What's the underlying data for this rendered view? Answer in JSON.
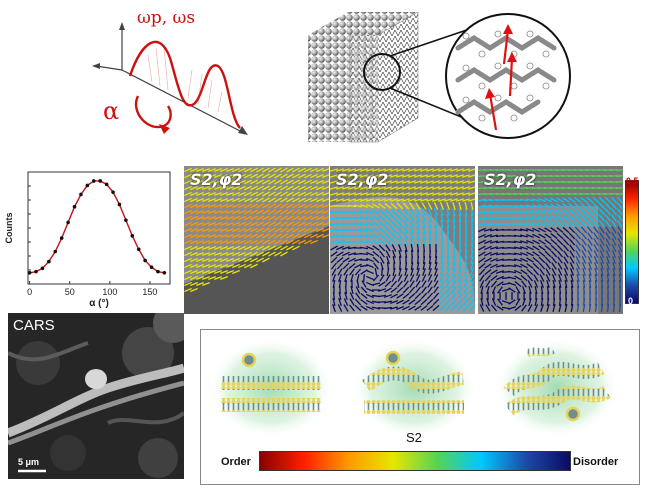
{
  "schematic": {
    "omega_label": "ωp, ωs",
    "alpha_label": "α"
  },
  "orientation_panels": [
    {
      "label": "S2,φ2"
    },
    {
      "label": "S2,φ2"
    },
    {
      "label": "S2,φ2"
    }
  ],
  "colorbar": {
    "max": "0.5",
    "min": "0",
    "colors": [
      "#8b0000",
      "#ff2000",
      "#ff9900",
      "#e6e600",
      "#55d455",
      "#00c8ff",
      "#1e4aa8",
      "#0a0a66"
    ]
  },
  "cars": {
    "label": "CARS",
    "scalebar": "5 μm"
  },
  "model": {
    "symbol": "S2",
    "left_label": "Order",
    "right_label": "Disorder"
  },
  "chart_data": {
    "type": "line",
    "title": "",
    "xlabel": "α (°)",
    "ylabel": "Counts",
    "xlim": [
      -2,
      175
    ],
    "x_ticks": [
      0,
      50,
      100,
      150
    ],
    "y_ticks_shown": false,
    "series": [
      {
        "markers": "dots",
        "x": [
          0,
          8,
          16,
          24,
          32,
          40,
          48,
          56,
          64,
          72,
          80,
          88,
          96,
          104,
          112,
          120,
          128,
          136,
          144,
          152,
          160,
          168
        ],
        "y": [
          0.1,
          0.11,
          0.14,
          0.2,
          0.29,
          0.41,
          0.55,
          0.69,
          0.8,
          0.88,
          0.92,
          0.92,
          0.89,
          0.82,
          0.71,
          0.57,
          0.43,
          0.31,
          0.21,
          0.15,
          0.11,
          0.1
        ]
      }
    ]
  }
}
